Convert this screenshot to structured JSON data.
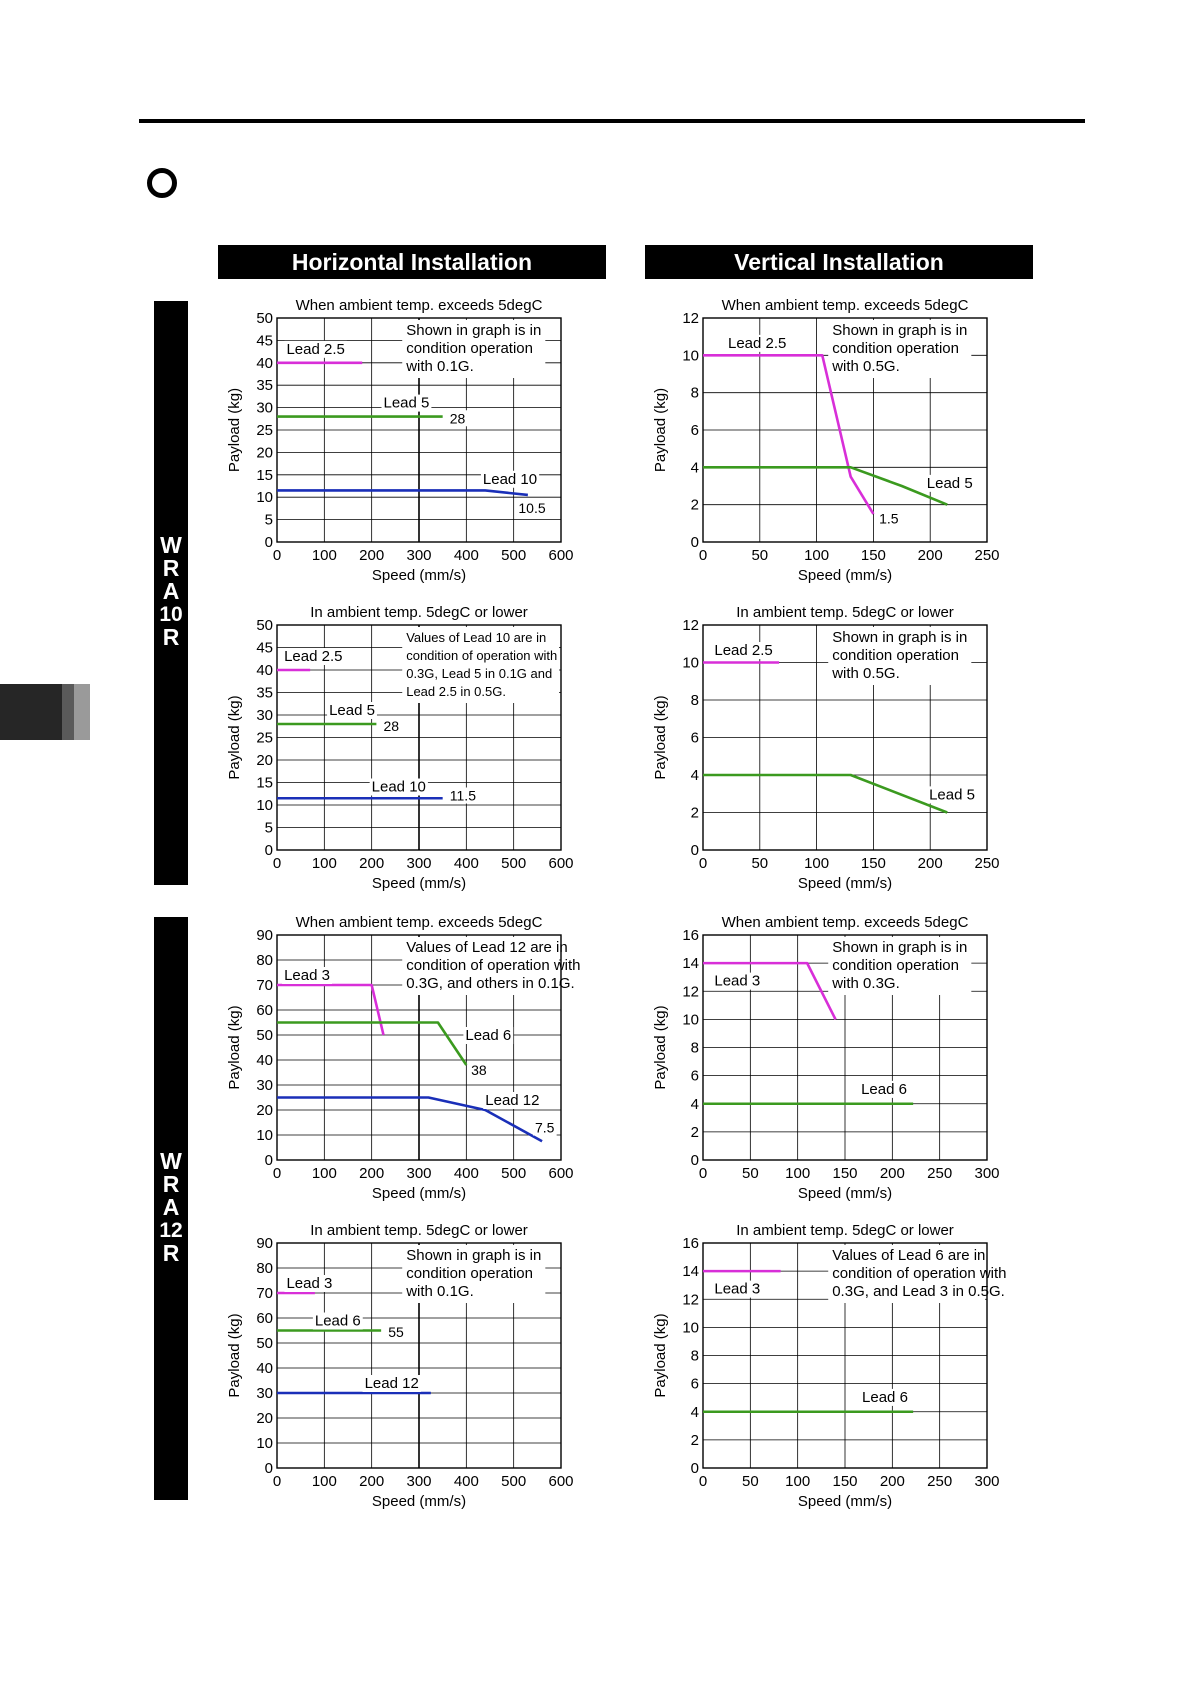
{
  "headers": {
    "horizontal": "Horizontal Installation",
    "vertical": "Vertical Installation"
  },
  "side_labels": {
    "wra10r": [
      "W",
      "R",
      "A",
      "10",
      "R"
    ],
    "wra12r": [
      "W",
      "R",
      "A",
      "12",
      "R"
    ]
  },
  "chart_data": [
    {
      "id": "c1",
      "type": "line",
      "title": "When ambient temp. exceeds 5degC",
      "xlabel": "Speed (mm/s)",
      "ylabel": "Payload (kg)",
      "xlim": [
        0,
        600
      ],
      "ylim": [
        0,
        50
      ],
      "xticks": [
        "0",
        "100",
        "200",
        "300",
        "400",
        "500",
        "600"
      ],
      "yticks": [
        "0",
        "5",
        "10",
        "15",
        "20",
        "25",
        "30",
        "35",
        "40",
        "45",
        "50"
      ],
      "note": [
        "Shown in graph is in",
        "condition operation",
        "with 0.1G."
      ],
      "series": [
        {
          "name": "Lead 2.5",
          "color": "#d82fd8",
          "x": [
            0,
            180
          ],
          "y": [
            40,
            40
          ]
        },
        {
          "name": "Lead 5",
          "color": "#3b9a1f",
          "x": [
            0,
            350
          ],
          "y": [
            28,
            28
          ]
        },
        {
          "name": "Lead 10",
          "color": "#1a2fb8",
          "x": [
            0,
            440,
            530
          ],
          "y": [
            11.5,
            11.5,
            10.5
          ]
        }
      ],
      "labels": [
        {
          "text": "Lead 2.5",
          "x": 20,
          "y": 42
        },
        {
          "text": "Lead 5",
          "x": 225,
          "y": 30
        },
        {
          "text": "Lead 10",
          "x": 435,
          "y": 13
        },
        {
          "text": "28",
          "x": 365,
          "y": 26.5
        },
        {
          "text": "10.5",
          "x": 510,
          "y": 6.5
        }
      ]
    },
    {
      "id": "c2",
      "type": "line",
      "title": "When ambient temp. exceeds 5degC",
      "xlabel": "Speed (mm/s)",
      "ylabel": "Payload (kg)",
      "xlim": [
        0,
        250
      ],
      "ylim": [
        0,
        12
      ],
      "xticks": [
        "0",
        "50",
        "100",
        "150",
        "200",
        "250"
      ],
      "yticks": [
        "0",
        "2",
        "4",
        "6",
        "8",
        "10",
        "12"
      ],
      "note": [
        "Shown in graph is in",
        "condition operation",
        "with 0.5G."
      ],
      "series": [
        {
          "name": "Lead 2.5",
          "color": "#d82fd8",
          "x": [
            0,
            105,
            130,
            150
          ],
          "y": [
            10,
            10,
            3.5,
            1.5
          ]
        },
        {
          "name": "Lead 5",
          "color": "#3b9a1f",
          "x": [
            0,
            130,
            175,
            215
          ],
          "y": [
            4,
            4,
            3,
            2
          ]
        }
      ],
      "labels": [
        {
          "text": "Lead 2.5",
          "x": 22,
          "y": 10.4
        },
        {
          "text": "Lead 5",
          "x": 197,
          "y": 2.9
        },
        {
          "text": "1.5",
          "x": 155,
          "y": 1
        }
      ]
    },
    {
      "id": "c3",
      "type": "line",
      "title": "In ambient temp. 5degC or lower",
      "xlabel": "Speed (mm/s)",
      "ylabel": "Payload (kg)",
      "xlim": [
        0,
        600
      ],
      "ylim": [
        0,
        50
      ],
      "xticks": [
        "0",
        "100",
        "200",
        "300",
        "400",
        "500",
        "600"
      ],
      "yticks": [
        "0",
        "5",
        "10",
        "15",
        "20",
        "25",
        "30",
        "35",
        "40",
        "45",
        "50"
      ],
      "note": [
        "Values of Lead 10 are in",
        "condition of operation with",
        "0.3G, Lead 5 in 0.1G and",
        "Lead 2.5 in 0.5G."
      ],
      "series": [
        {
          "name": "Lead 2.5",
          "color": "#d82fd8",
          "x": [
            0,
            70
          ],
          "y": [
            40,
            40
          ]
        },
        {
          "name": "Lead 5",
          "color": "#3b9a1f",
          "x": [
            0,
            210
          ],
          "y": [
            28,
            28
          ]
        },
        {
          "name": "Lead 10",
          "color": "#1a2fb8",
          "x": [
            0,
            350
          ],
          "y": [
            11.5,
            11.5
          ]
        }
      ],
      "labels": [
        {
          "text": "Lead 2.5",
          "x": 15,
          "y": 42
        },
        {
          "text": "Lead 5",
          "x": 110,
          "y": 30
        },
        {
          "text": "Lead 10",
          "x": 200,
          "y": 13
        },
        {
          "text": "28",
          "x": 225,
          "y": 26.5
        },
        {
          "text": "11.5",
          "x": 365,
          "y": 11
        }
      ]
    },
    {
      "id": "c4",
      "type": "line",
      "title": "In ambient temp. 5degC or lower",
      "xlabel": "Speed (mm/s)",
      "ylabel": "Payload (kg)",
      "xlim": [
        0,
        250
      ],
      "ylim": [
        0,
        12
      ],
      "xticks": [
        "0",
        "50",
        "100",
        "150",
        "200",
        "250"
      ],
      "yticks": [
        "0",
        "2",
        "4",
        "6",
        "8",
        "10",
        "12"
      ],
      "note": [
        "Shown in graph is in",
        "condition operation",
        "with 0.5G."
      ],
      "series": [
        {
          "name": "Lead 2.5",
          "color": "#d82fd8",
          "x": [
            0,
            67
          ],
          "y": [
            10,
            10
          ]
        },
        {
          "name": "Lead 5",
          "color": "#3b9a1f",
          "x": [
            0,
            130,
            215
          ],
          "y": [
            4,
            4,
            2
          ]
        }
      ],
      "labels": [
        {
          "text": "Lead 2.5",
          "x": 10,
          "y": 10.4
        },
        {
          "text": "Lead 5",
          "x": 199,
          "y": 2.7
        }
      ]
    },
    {
      "id": "c5",
      "type": "line",
      "title": "When ambient temp. exceeds 5degC",
      "xlabel": "Speed (mm/s)",
      "ylabel": "Payload (kg)",
      "xlim": [
        0,
        600
      ],
      "ylim": [
        0,
        90
      ],
      "xticks": [
        "0",
        "100",
        "200",
        "300",
        "400",
        "500",
        "600"
      ],
      "yticks": [
        "0",
        "10",
        "20",
        "30",
        "40",
        "50",
        "60",
        "70",
        "80",
        "90"
      ],
      "note": [
        "Values of Lead 12 are in",
        "condition of operation with",
        "0.3G, and others in 0.1G."
      ],
      "series": [
        {
          "name": "Lead 3",
          "color": "#d82fd8",
          "x": [
            0,
            200,
            225
          ],
          "y": [
            70,
            70,
            50
          ]
        },
        {
          "name": "Lead 6",
          "color": "#3b9a1f",
          "x": [
            0,
            340,
            400
          ],
          "y": [
            55,
            55,
            38
          ]
        },
        {
          "name": "Lead 12",
          "color": "#1a2fb8",
          "x": [
            0,
            320,
            440,
            560
          ],
          "y": [
            25,
            25,
            20,
            7.5
          ]
        }
      ],
      "labels": [
        {
          "text": "Lead 3",
          "x": 15,
          "y": 72
        },
        {
          "text": "Lead 6",
          "x": 398,
          "y": 48
        },
        {
          "text": "Lead 12",
          "x": 440,
          "y": 22
        },
        {
          "text": "38",
          "x": 410,
          "y": 34
        },
        {
          "text": "7.5",
          "x": 545,
          "y": 11
        }
      ]
    },
    {
      "id": "c6",
      "type": "line",
      "title": "When ambient temp. exceeds 5degC",
      "xlabel": "Speed (mm/s)",
      "ylabel": "Payload (kg)",
      "xlim": [
        0,
        300
      ],
      "ylim": [
        0,
        16
      ],
      "xticks": [
        "0",
        "50",
        "100",
        "150",
        "200",
        "250",
        "300"
      ],
      "yticks": [
        "0",
        "2",
        "4",
        "6",
        "8",
        "10",
        "12",
        "14",
        "16"
      ],
      "note": [
        "Shown in graph is in",
        "condition operation",
        "with 0.3G."
      ],
      "series": [
        {
          "name": "Lead 3",
          "color": "#d82fd8",
          "x": [
            0,
            110,
            140
          ],
          "y": [
            14,
            14,
            10
          ]
        },
        {
          "name": "Lead 6",
          "color": "#3b9a1f",
          "x": [
            0,
            222
          ],
          "y": [
            4,
            4
          ]
        }
      ],
      "labels": [
        {
          "text": "Lead 3",
          "x": 12,
          "y": 12.4
        },
        {
          "text": "Lead 6",
          "x": 167,
          "y": 4.7
        }
      ]
    },
    {
      "id": "c7",
      "type": "line",
      "title": "In ambient temp. 5degC or lower",
      "xlabel": "Speed (mm/s)",
      "ylabel": "Payload (kg)",
      "xlim": [
        0,
        600
      ],
      "ylim": [
        0,
        90
      ],
      "xticks": [
        "0",
        "100",
        "200",
        "300",
        "400",
        "500",
        "600"
      ],
      "yticks": [
        "0",
        "10",
        "20",
        "30",
        "40",
        "50",
        "60",
        "70",
        "80",
        "90"
      ],
      "note": [
        "Shown in graph is in",
        "condition operation",
        "with 0.1G."
      ],
      "series": [
        {
          "name": "Lead 3",
          "color": "#d82fd8",
          "x": [
            0,
            80
          ],
          "y": [
            70,
            70
          ]
        },
        {
          "name": "Lead 6",
          "color": "#3b9a1f",
          "x": [
            0,
            220
          ],
          "y": [
            55,
            55
          ]
        },
        {
          "name": "Lead 12",
          "color": "#1a2fb8",
          "x": [
            0,
            325
          ],
          "y": [
            30,
            30
          ]
        }
      ],
      "labels": [
        {
          "text": "Lead 3",
          "x": 20,
          "y": 72
        },
        {
          "text": "Lead 6",
          "x": 80,
          "y": 57
        },
        {
          "text": "Lead 12",
          "x": 185,
          "y": 32
        },
        {
          "text": "55",
          "x": 235,
          "y": 52.5
        }
      ]
    },
    {
      "id": "c8",
      "type": "line",
      "title": "In ambient temp. 5degC or lower",
      "xlabel": "Speed (mm/s)",
      "ylabel": "Payload (kg)",
      "xlim": [
        0,
        300
      ],
      "ylim": [
        0,
        16
      ],
      "xticks": [
        "0",
        "50",
        "100",
        "150",
        "200",
        "250",
        "300"
      ],
      "yticks": [
        "0",
        "2",
        "4",
        "6",
        "8",
        "10",
        "12",
        "14",
        "16"
      ],
      "note": [
        "Values of Lead 6 are in",
        "condition of operation with",
        "0.3G, and Lead 3 in 0.5G."
      ],
      "series": [
        {
          "name": "Lead 3",
          "color": "#d82fd8",
          "x": [
            0,
            82
          ],
          "y": [
            14,
            14
          ]
        },
        {
          "name": "Lead 6",
          "color": "#3b9a1f",
          "x": [
            0,
            222
          ],
          "y": [
            4,
            4
          ]
        }
      ],
      "labels": [
        {
          "text": "Lead 3",
          "x": 12,
          "y": 12.4
        },
        {
          "text": "Lead 6",
          "x": 168,
          "y": 4.7
        }
      ]
    }
  ]
}
